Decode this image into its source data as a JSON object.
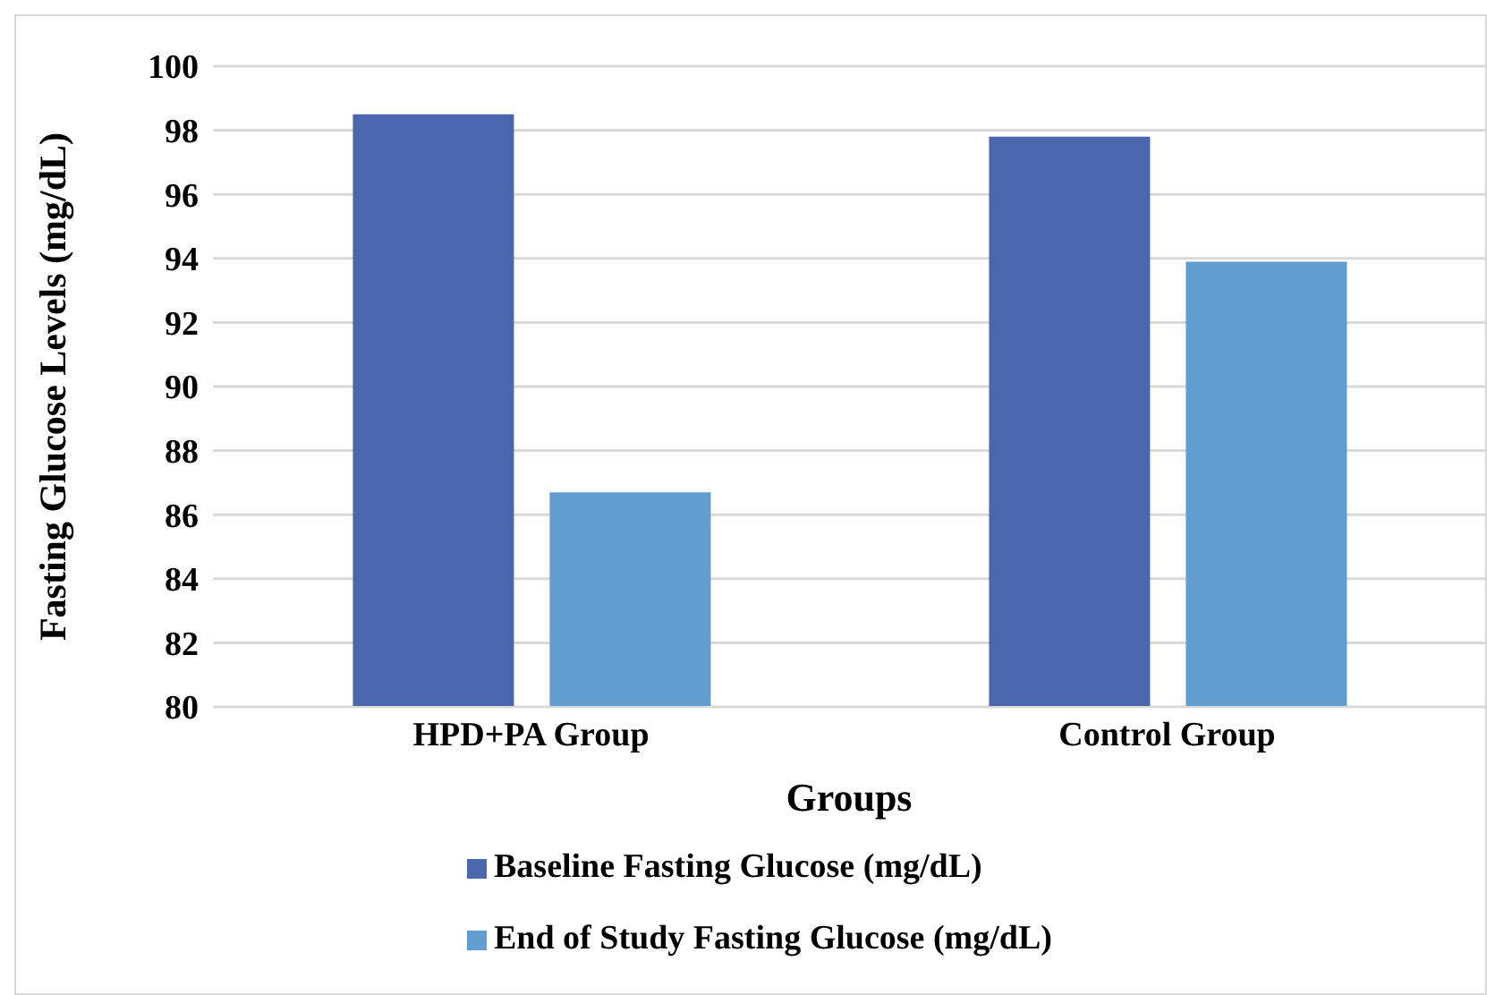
{
  "chart_data": {
    "type": "bar",
    "xlabel": "Groups",
    "ylabel": "Fasting Glucose Levels (mg/dL)",
    "categories": [
      "HPD+PA Group",
      "Control Group"
    ],
    "series": [
      {
        "name": "Baseline Fasting Glucose (mg/dL)",
        "color": "#4a66ac",
        "values": [
          98.5,
          97.8
        ]
      },
      {
        "name": "End of Study Fasting Glucose (mg/dL)",
        "color": "#629dd1",
        "values": [
          86.7,
          93.9
        ]
      }
    ],
    "ylim": [
      80,
      100
    ],
    "yticks": [
      80,
      82,
      84,
      86,
      88,
      90,
      92,
      94,
      96,
      98,
      100
    ],
    "grid": "y",
    "legend": "bottom"
  }
}
